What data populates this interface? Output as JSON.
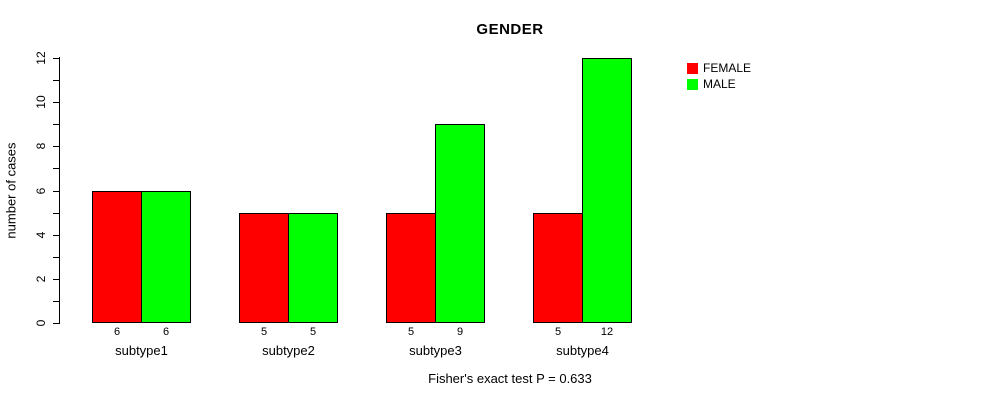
{
  "title": "GENDER",
  "caption": "Fisher's exact test P = 0.633",
  "chart_data": {
    "type": "bar",
    "title": "GENDER",
    "xlabel": "",
    "ylabel": "number of cases",
    "categories": [
      "subtype1",
      "subtype2",
      "subtype3",
      "subtype4"
    ],
    "series": [
      {
        "name": "FEMALE",
        "color": "#ff0000",
        "values": [
          6,
          5,
          5,
          5
        ]
      },
      {
        "name": "MALE",
        "color": "#00ff00",
        "values": [
          6,
          5,
          9,
          12
        ]
      }
    ],
    "bar_value_labels": [
      [
        6,
        6
      ],
      [
        5,
        5
      ],
      [
        5,
        9
      ],
      [
        5,
        12
      ]
    ],
    "ylim": [
      0,
      12
    ],
    "yticks_labeled": [
      0,
      2,
      4,
      6,
      8,
      10,
      12
    ],
    "yticks_minor_every": 1,
    "grid": false,
    "legend_position": "right-of-plot-top",
    "legend_entries": [
      {
        "label": "FEMALE",
        "color": "#ff0000"
      },
      {
        "label": "MALE",
        "color": "#00ff00"
      }
    ],
    "annotation": "Fisher's exact test P = 0.633",
    "bar_border_color": "#000000",
    "background_color": "#ffffff"
  }
}
